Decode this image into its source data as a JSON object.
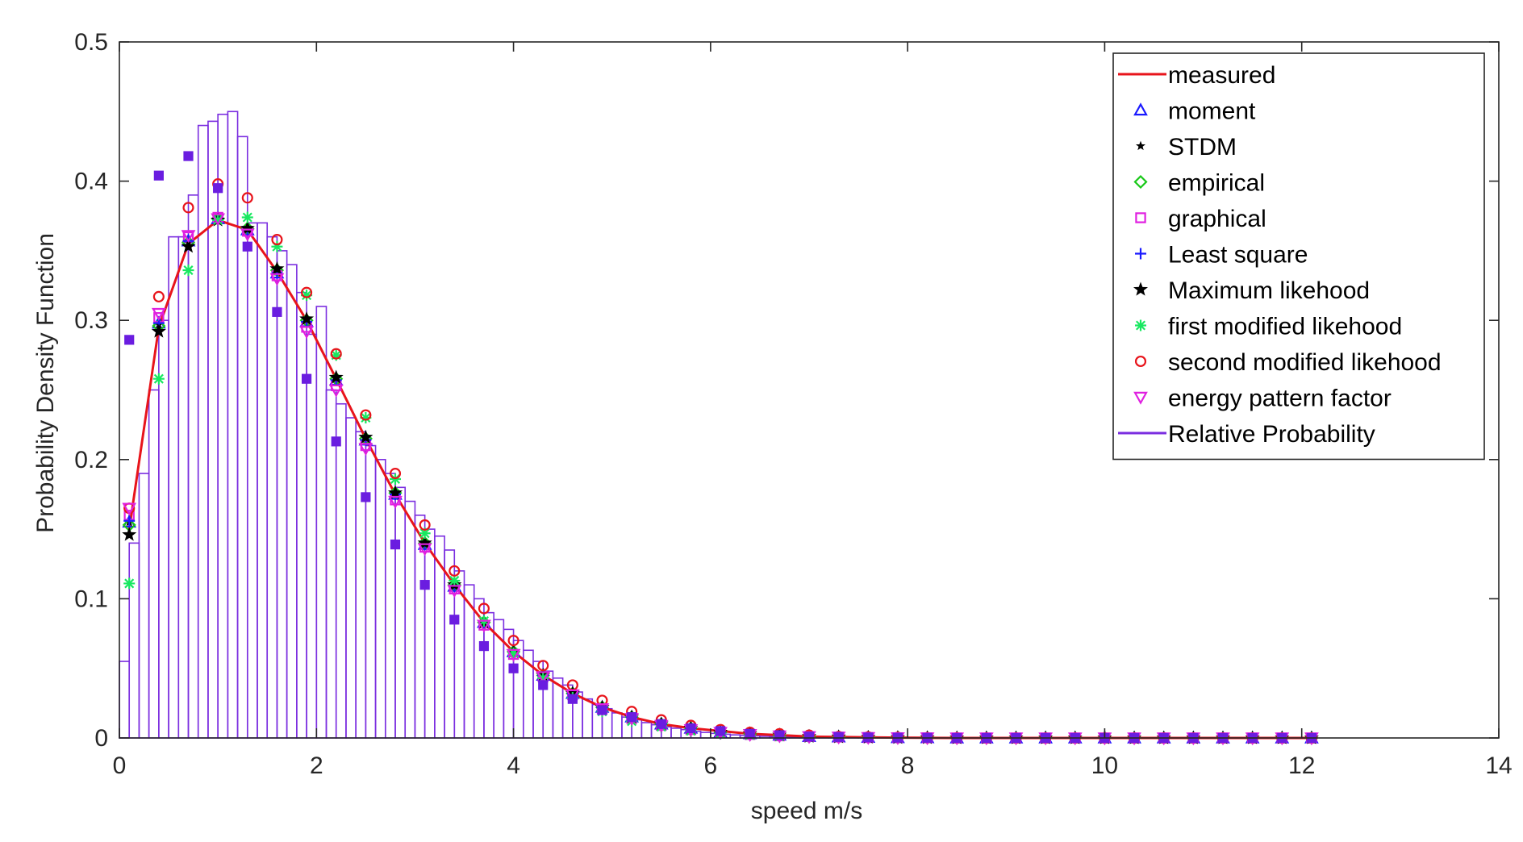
{
  "chart_data": {
    "type": "bar",
    "xlabel": "speed m/s",
    "ylabel": "Probability Density Function",
    "xlim": [
      0,
      14
    ],
    "ylim": [
      0,
      0.5
    ],
    "xticks": [
      "0",
      "2",
      "4",
      "6",
      "8",
      "10",
      "12",
      "14"
    ],
    "yticks": [
      "0",
      "0.1",
      "0.2",
      "0.3",
      "0.4",
      "0.5"
    ],
    "grid": false,
    "legend_position": "top-right",
    "histogram": {
      "name": "Relative Probability",
      "color": "#7b2ee0",
      "bin_width": 0.1,
      "bin_start": 0.0,
      "values": [
        0.055,
        0.14,
        0.19,
        0.25,
        0.3,
        0.36,
        0.36,
        0.39,
        0.44,
        0.443,
        0.448,
        0.45,
        0.432,
        0.37,
        0.37,
        0.36,
        0.35,
        0.34,
        0.32,
        0.29,
        0.31,
        0.25,
        0.24,
        0.23,
        0.22,
        0.21,
        0.2,
        0.19,
        0.18,
        0.17,
        0.16,
        0.15,
        0.145,
        0.135,
        0.12,
        0.11,
        0.1,
        0.09,
        0.085,
        0.078,
        0.07,
        0.063,
        0.055,
        0.048,
        0.043,
        0.038,
        0.033,
        0.028,
        0.024,
        0.021,
        0.018,
        0.015,
        0.013,
        0.011,
        0.0095,
        0.008,
        0.007,
        0.006,
        0.0048,
        0.004,
        0.0033,
        0.0027,
        0.0022,
        0.0018,
        0.0015,
        0.0012,
        0.001,
        0.0008,
        0.0007,
        0.0006,
        0.0005,
        0.0004,
        0.0003,
        0.0003,
        0.0002,
        0.0002,
        0.0001,
        0.0001,
        0.0001,
        0.0001
      ]
    },
    "x": [
      0.1,
      0.4,
      0.7,
      1.0,
      1.3,
      1.6,
      1.9,
      2.2,
      2.5,
      2.8,
      3.1,
      3.4,
      3.7,
      4.0,
      4.3,
      4.6,
      4.9,
      5.2,
      5.5,
      5.8,
      6.1,
      6.4,
      6.7,
      7.0,
      7.3,
      7.6,
      7.9,
      8.2,
      8.5,
      8.8,
      9.1,
      9.4,
      9.7,
      10.0,
      10.3,
      10.6,
      10.9,
      11.2,
      11.5,
      11.8,
      12.1
    ],
    "series": [
      {
        "name": "measured",
        "color": "#e8141b",
        "marker": "line",
        "values": [
          0.15,
          0.295,
          0.355,
          0.372,
          0.365,
          0.335,
          0.3,
          0.258,
          0.215,
          0.175,
          0.14,
          0.11,
          0.083,
          0.062,
          0.045,
          0.032,
          0.022,
          0.015,
          0.01,
          0.007,
          0.005,
          0.003,
          0.002,
          0.001,
          0.0007,
          0.0004,
          0.0002,
          0.0001,
          0,
          0,
          0,
          0,
          0,
          0,
          0,
          0,
          0,
          0,
          0,
          0,
          0
        ]
      },
      {
        "name": "moment",
        "color": "#1a1aff",
        "marker": "triangle-up",
        "values": [
          0.155,
          0.298,
          0.357,
          0.373,
          0.365,
          0.334,
          0.299,
          0.257,
          0.214,
          0.175,
          0.139,
          0.109,
          0.083,
          0.062,
          0.045,
          0.032,
          0.022,
          0.015,
          0.01,
          0.007,
          0.004,
          0.003,
          0.002,
          0.001,
          0.0007,
          0.0004,
          0.0002,
          0.0001,
          0,
          0,
          0,
          0,
          0,
          0,
          0,
          0,
          0,
          0,
          0,
          0,
          0
        ]
      },
      {
        "name": "STDM",
        "color": "#000000",
        "marker": "star-small",
        "values": [
          0.155,
          0.297,
          0.356,
          0.373,
          0.365,
          0.335,
          0.3,
          0.258,
          0.215,
          0.175,
          0.14,
          0.11,
          0.083,
          0.062,
          0.045,
          0.032,
          0.022,
          0.015,
          0.01,
          0.007,
          0.004,
          0.003,
          0.002,
          0.001,
          0.0007,
          0.0004,
          0.0002,
          0.0001,
          0,
          0,
          0,
          0,
          0,
          0,
          0,
          0,
          0,
          0,
          0,
          0,
          0
        ]
      },
      {
        "name": "empirical",
        "color": "#18c818",
        "marker": "diamond",
        "values": [
          0.153,
          0.296,
          0.356,
          0.373,
          0.366,
          0.336,
          0.3,
          0.258,
          0.215,
          0.176,
          0.14,
          0.11,
          0.083,
          0.062,
          0.045,
          0.032,
          0.022,
          0.015,
          0.01,
          0.007,
          0.004,
          0.003,
          0.002,
          0.001,
          0.0007,
          0.0004,
          0.0002,
          0.0001,
          0,
          0,
          0,
          0,
          0,
          0,
          0,
          0,
          0,
          0,
          0,
          0,
          0
        ]
      },
      {
        "name": "graphical",
        "color": "#e020e0",
        "marker": "square",
        "values": [
          0.16,
          0.302,
          0.36,
          0.374,
          0.364,
          0.332,
          0.295,
          0.253,
          0.21,
          0.171,
          0.137,
          0.107,
          0.081,
          0.06,
          0.044,
          0.031,
          0.021,
          0.014,
          0.009,
          0.006,
          0.004,
          0.0025,
          0.0015,
          0.001,
          0.0006,
          0.0003,
          0.0002,
          0.0001,
          0,
          0,
          0,
          0,
          0,
          0,
          0,
          0,
          0,
          0,
          0,
          0,
          0
        ]
      },
      {
        "name": "Least square",
        "color": "#1a1aff",
        "marker": "plus",
        "values": [
          0.156,
          0.298,
          0.357,
          0.373,
          0.365,
          0.334,
          0.299,
          0.257,
          0.214,
          0.175,
          0.139,
          0.109,
          0.083,
          0.062,
          0.045,
          0.032,
          0.022,
          0.015,
          0.01,
          0.007,
          0.004,
          0.003,
          0.002,
          0.001,
          0.0007,
          0.0004,
          0.0002,
          0.0001,
          0,
          0,
          0,
          0,
          0,
          0,
          0,
          0,
          0,
          0,
          0,
          0,
          0
        ]
      },
      {
        "name": "Maximum likehood",
        "color": "#000000",
        "marker": "star",
        "values": [
          0.146,
          0.292,
          0.353,
          0.372,
          0.366,
          0.337,
          0.301,
          0.259,
          0.216,
          0.176,
          0.14,
          0.11,
          0.083,
          0.062,
          0.045,
          0.032,
          0.022,
          0.015,
          0.01,
          0.007,
          0.004,
          0.003,
          0.002,
          0.001,
          0.0007,
          0.0004,
          0.0002,
          0.0001,
          0,
          0,
          0,
          0,
          0,
          0,
          0,
          0,
          0,
          0,
          0,
          0,
          0
        ]
      },
      {
        "name": "first modified likehood",
        "color": "#18e860",
        "marker": "asterisk",
        "values": [
          0.111,
          0.258,
          0.336,
          0.372,
          0.374,
          0.353,
          0.318,
          0.275,
          0.23,
          0.186,
          0.147,
          0.113,
          0.084,
          0.061,
          0.043,
          0.029,
          0.019,
          0.012,
          0.008,
          0.005,
          0.003,
          0.002,
          0.001,
          0.0006,
          0.0003,
          0.0002,
          0.0001,
          0,
          0,
          0,
          0,
          0,
          0,
          0,
          0,
          0,
          0,
          0,
          0,
          0,
          0
        ]
      },
      {
        "name": "second modified likehood",
        "color": "#e8141b",
        "marker": "circle",
        "values": [
          0.165,
          0.317,
          0.381,
          0.398,
          0.388,
          0.358,
          0.32,
          0.276,
          0.232,
          0.19,
          0.153,
          0.12,
          0.093,
          0.07,
          0.052,
          0.038,
          0.027,
          0.019,
          0.013,
          0.009,
          0.006,
          0.004,
          0.003,
          0.002,
          0.001,
          0.0007,
          0.0004,
          0.0002,
          0.0001,
          0,
          0,
          0,
          0,
          0,
          0,
          0,
          0,
          0,
          0,
          0,
          0
        ]
      },
      {
        "name": "energy pattern factor",
        "color": "#e020e0",
        "marker": "triangle-down",
        "values": [
          0.165,
          0.305,
          0.361,
          0.373,
          0.362,
          0.33,
          0.292,
          0.25,
          0.208,
          0.17,
          0.136,
          0.106,
          0.081,
          0.06,
          0.044,
          0.031,
          0.021,
          0.014,
          0.009,
          0.006,
          0.004,
          0.0025,
          0.0015,
          0.001,
          0.0006,
          0.0003,
          0.0002,
          0.0001,
          0,
          0,
          0,
          0,
          0,
          0,
          0,
          0,
          0,
          0,
          0,
          0,
          0
        ]
      },
      {
        "name": "",
        "color": "#6a1de0",
        "marker": "square-filled",
        "values": [
          0.286,
          0.404,
          0.418,
          0.395,
          0.353,
          0.306,
          0.258,
          0.213,
          0.173,
          0.139,
          0.11,
          0.085,
          0.066,
          0.05,
          0.038,
          0.028,
          0.02,
          0.015,
          0.01,
          0.007,
          0.005,
          0.003,
          0.002,
          0.001,
          0.0007,
          0.0004,
          0.0002,
          0.0001,
          0,
          0,
          0,
          0,
          0,
          0,
          0,
          0,
          0,
          0,
          0,
          0,
          0
        ]
      }
    ],
    "legend": [
      {
        "label": "measured",
        "marker": "line",
        "color": "#e8141b"
      },
      {
        "label": "moment",
        "marker": "triangle-up",
        "color": "#1a1aff"
      },
      {
        "label": "STDM",
        "marker": "star-small",
        "color": "#000000"
      },
      {
        "label": "empirical",
        "marker": "diamond",
        "color": "#18c818"
      },
      {
        "label": "graphical",
        "marker": "square",
        "color": "#e020e0"
      },
      {
        "label": "Least square",
        "marker": "plus",
        "color": "#1a1aff"
      },
      {
        "label": "Maximum likehood",
        "marker": "star",
        "color": "#000000"
      },
      {
        "label": "first modified likehood",
        "marker": "asterisk",
        "color": "#18e860"
      },
      {
        "label": "second modified likehood",
        "marker": "circle",
        "color": "#e8141b"
      },
      {
        "label": "energy pattern factor",
        "marker": "triangle-down",
        "color": "#e020e0"
      },
      {
        "label": "Relative Probability",
        "marker": "line",
        "color": "#7b2ee0"
      }
    ]
  }
}
